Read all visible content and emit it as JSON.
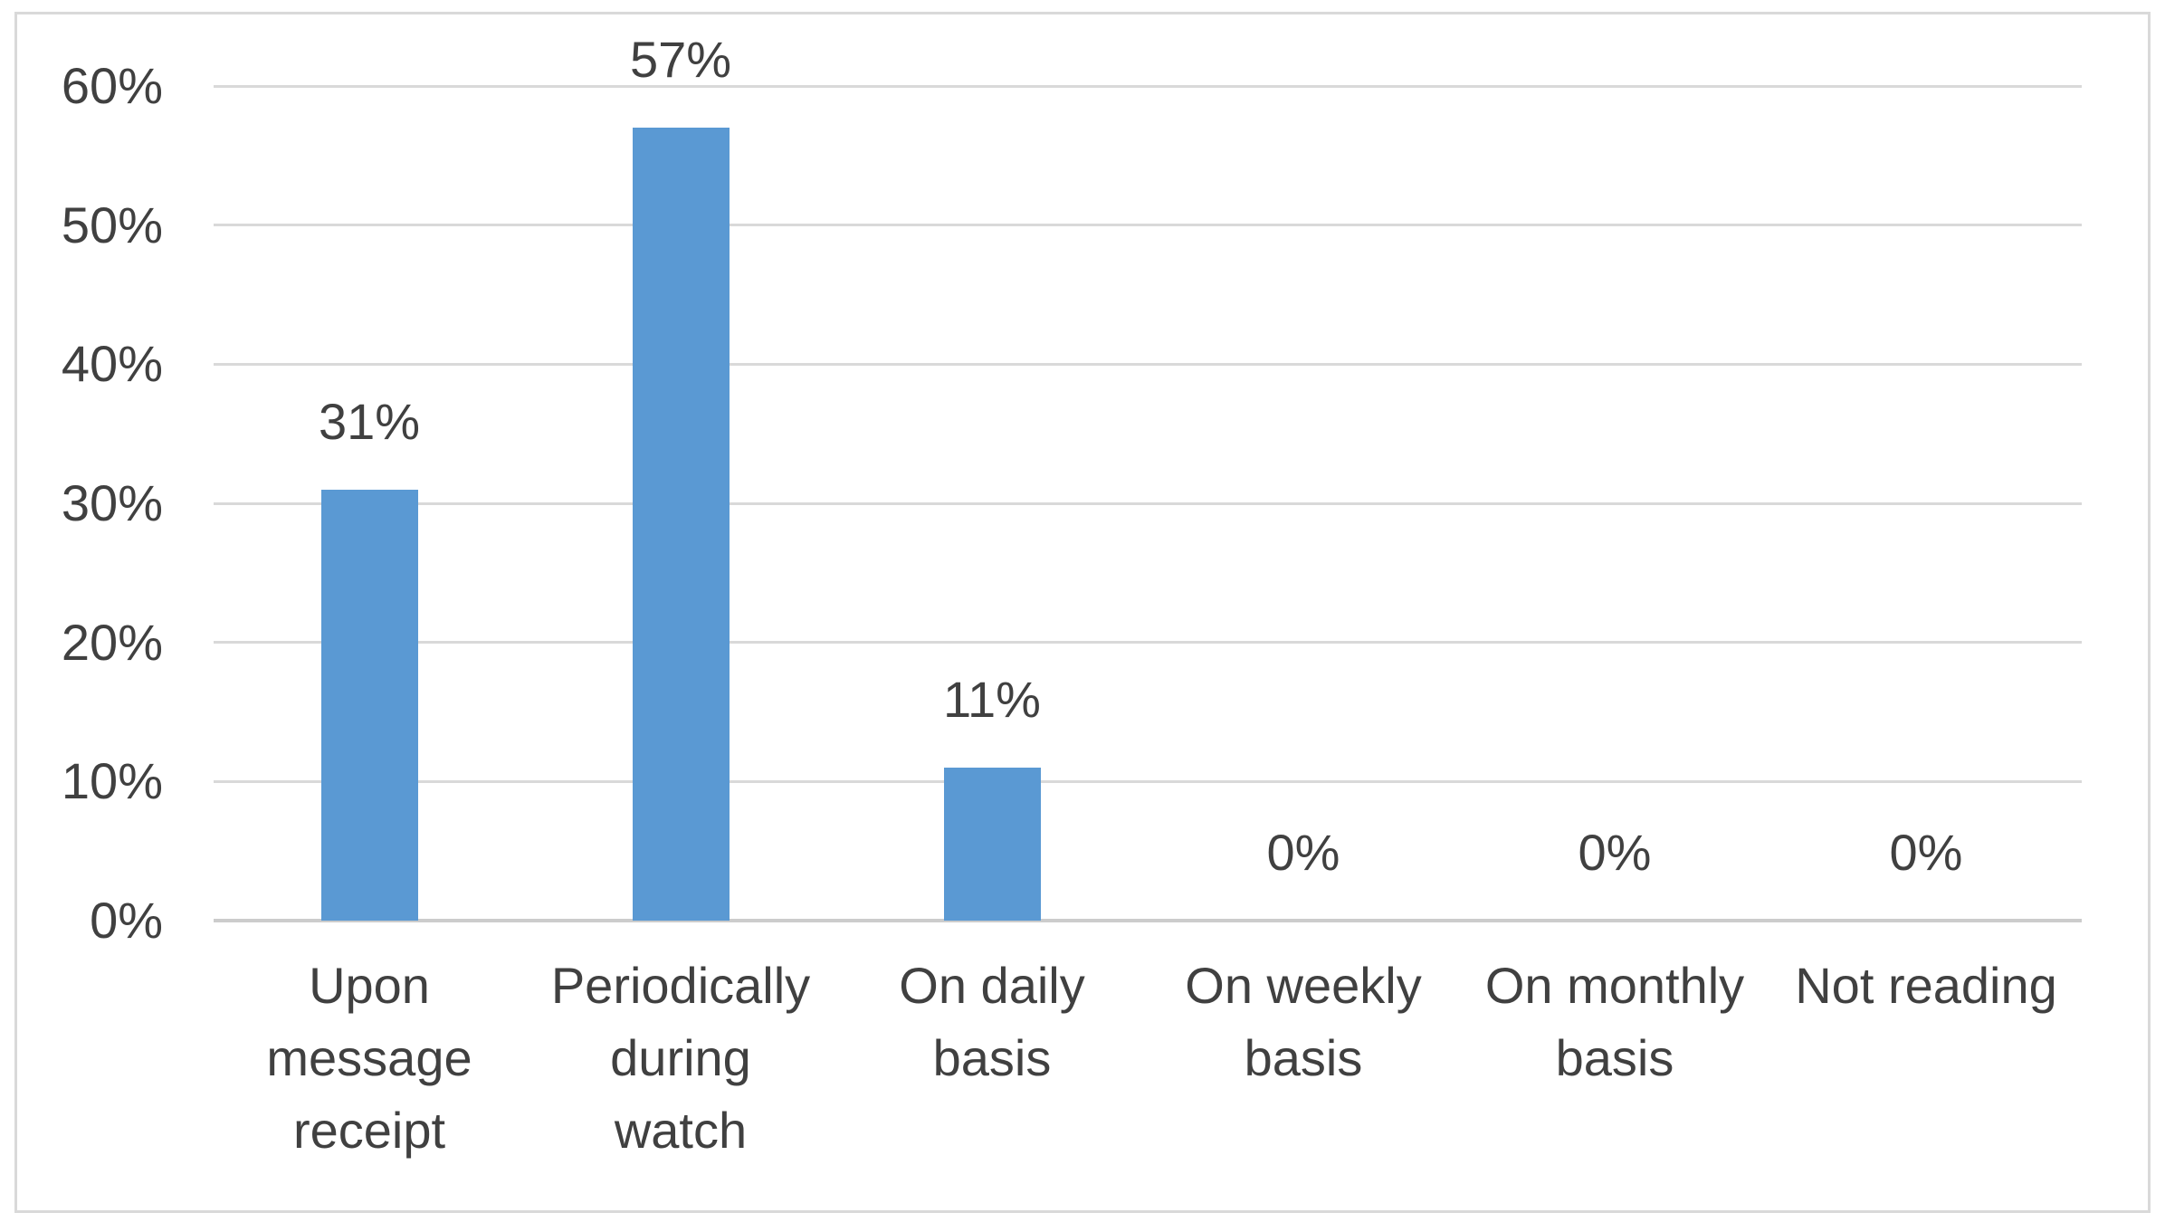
{
  "chart_data": {
    "type": "bar",
    "title": "",
    "xlabel": "",
    "ylabel": "",
    "categories": [
      "Upon message receipt",
      "Periodically during watch",
      "On daily basis",
      "On weekly basis",
      "On monthly basis",
      "Not reading"
    ],
    "values": [
      31,
      57,
      11,
      0,
      0,
      0
    ],
    "data_labels": [
      "31%",
      "57%",
      "11%",
      "0%",
      "0%",
      "0%"
    ],
    "y_ticks": [
      {
        "label": "60%",
        "value": 60
      },
      {
        "label": "50%",
        "value": 50
      },
      {
        "label": "40%",
        "value": 40
      },
      {
        "label": "30%",
        "value": 30
      },
      {
        "label": "20%",
        "value": 20
      },
      {
        "label": "10%",
        "value": 10
      },
      {
        "label": "0%",
        "value": 0
      }
    ],
    "ylim": [
      0,
      60
    ],
    "grid": "horizontal",
    "legend": "none",
    "colors": {
      "bar": "#5A99D3",
      "gridline": "#D9D9D9",
      "axis_line": "#CCCCCC",
      "text": "#404040",
      "frame_border": "#D9D9D9",
      "background": "#FFFFFF"
    }
  }
}
